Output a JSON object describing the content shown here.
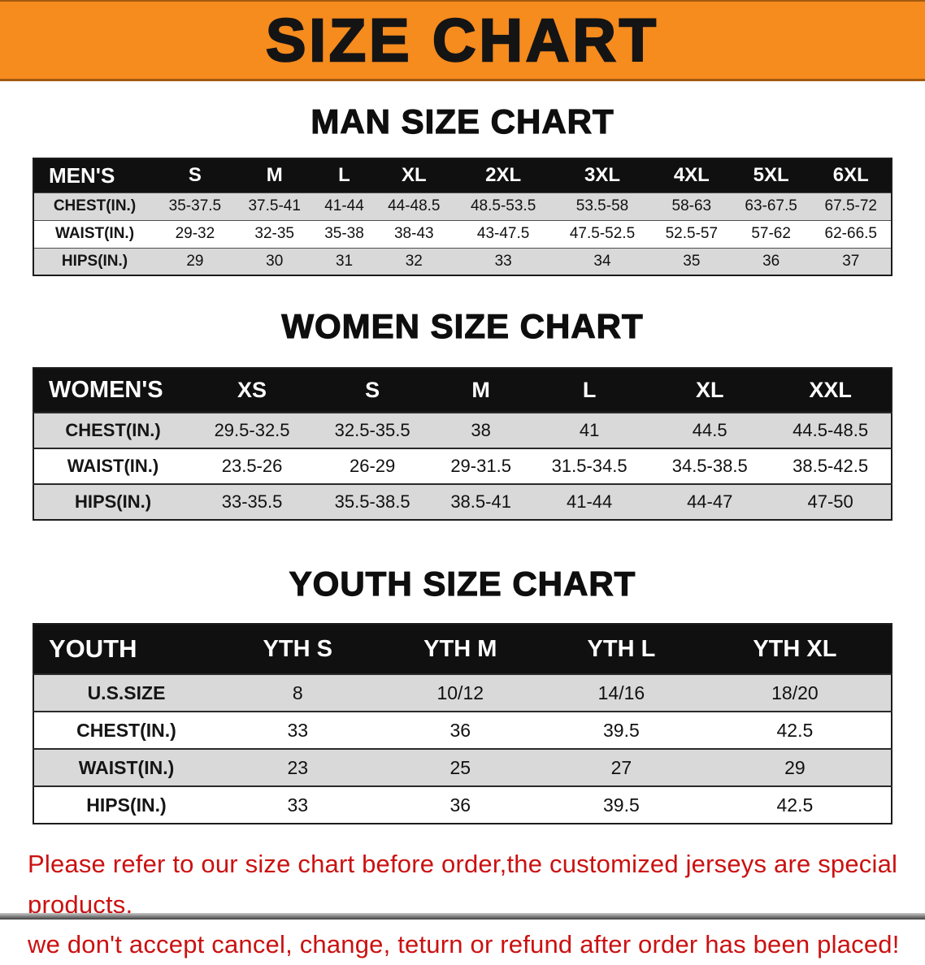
{
  "banner": {
    "title": "SIZE CHART",
    "bg_color": "#f68b1e",
    "text_color": "#141414"
  },
  "sections": [
    {
      "heading": "MAN SIZE CHART",
      "table": {
        "corner": "MEN'S",
        "columns": [
          "S",
          "M",
          "L",
          "XL",
          "2XL",
          "3XL",
          "4XL",
          "5XL",
          "6XL"
        ],
        "rows": [
          {
            "label": "CHEST(IN.)",
            "values": [
              "35-37.5",
              "37.5-41",
              "41-44",
              "44-48.5",
              "48.5-53.5",
              "53.5-58",
              "58-63",
              "63-67.5",
              "67.5-72"
            ]
          },
          {
            "label": "WAIST(IN.)",
            "values": [
              "29-32",
              "32-35",
              "35-38",
              "38-43",
              "43-47.5",
              "47.5-52.5",
              "52.5-57",
              "57-62",
              "62-66.5"
            ]
          },
          {
            "label": "HIPS(IN.)",
            "values": [
              "29",
              "30",
              "31",
              "32",
              "33",
              "34",
              "35",
              "36",
              "37"
            ]
          }
        ]
      }
    },
    {
      "heading": "WOMEN SIZE CHART",
      "table": {
        "corner": "WOMEN'S",
        "columns": [
          "XS",
          "S",
          "M",
          "L",
          "XL",
          "XXL"
        ],
        "rows": [
          {
            "label": "CHEST(IN.)",
            "values": [
              "29.5-32.5",
              "32.5-35.5",
              "38",
              "41",
              "44.5",
              "44.5-48.5"
            ]
          },
          {
            "label": "WAIST(IN.)",
            "values": [
              "23.5-26",
              "26-29",
              "29-31.5",
              "31.5-34.5",
              "34.5-38.5",
              "38.5-42.5"
            ]
          },
          {
            "label": "HIPS(IN.)",
            "values": [
              "33-35.5",
              "35.5-38.5",
              "38.5-41",
              "41-44",
              "44-47",
              "47-50"
            ]
          }
        ]
      }
    },
    {
      "heading": "YOUTH SIZE CHART",
      "table": {
        "corner": "YOUTH",
        "columns": [
          "YTH S",
          "YTH M",
          "YTH L",
          "YTH XL"
        ],
        "rows": [
          {
            "label": "U.S.SIZE",
            "values": [
              "8",
              "10/12",
              "14/16",
              "18/20"
            ]
          },
          {
            "label": "CHEST(IN.)",
            "values": [
              "33",
              "36",
              "39.5",
              "42.5"
            ]
          },
          {
            "label": "WAIST(IN.)",
            "values": [
              "23",
              "25",
              "27",
              "29"
            ]
          },
          {
            "label": "HIPS(IN.)",
            "values": [
              "33",
              "36",
              "39.5",
              "42.5"
            ]
          }
        ]
      }
    }
  ],
  "footer": {
    "line1": "Please refer to our size chart before order,the customized jerseys are special products,",
    "line2": "we don't accept cancel, change, teturn or refund after order has been placed!",
    "text_color": "#cb1111"
  }
}
